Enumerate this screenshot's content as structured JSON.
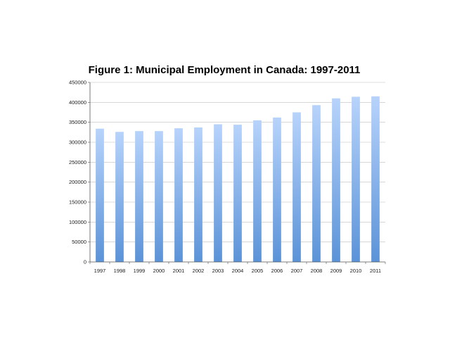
{
  "chart_data": {
    "type": "bar",
    "title": "Figure 1: Municipal Employment in Canada: 1997-2011",
    "xlabel": "",
    "ylabel": "",
    "categories": [
      "1997",
      "1998",
      "1999",
      "2000",
      "2001",
      "2002",
      "2003",
      "2004",
      "2005",
      "2006",
      "2007",
      "2008",
      "2009",
      "2010",
      "2011"
    ],
    "values": [
      334000,
      326000,
      328000,
      328000,
      335000,
      337000,
      345000,
      344000,
      355000,
      362000,
      375000,
      393000,
      410000,
      414000,
      415000
    ],
    "ylim": [
      0,
      450000
    ],
    "yticks": [
      0,
      50000,
      100000,
      150000,
      200000,
      250000,
      300000,
      350000,
      400000,
      450000
    ],
    "grid": true,
    "legend": "none",
    "bar_color_top": "#b7d3fb",
    "bar_color_bottom": "#5b93d8",
    "axis_color": "#555555",
    "grid_color": "#bdbdbd"
  }
}
